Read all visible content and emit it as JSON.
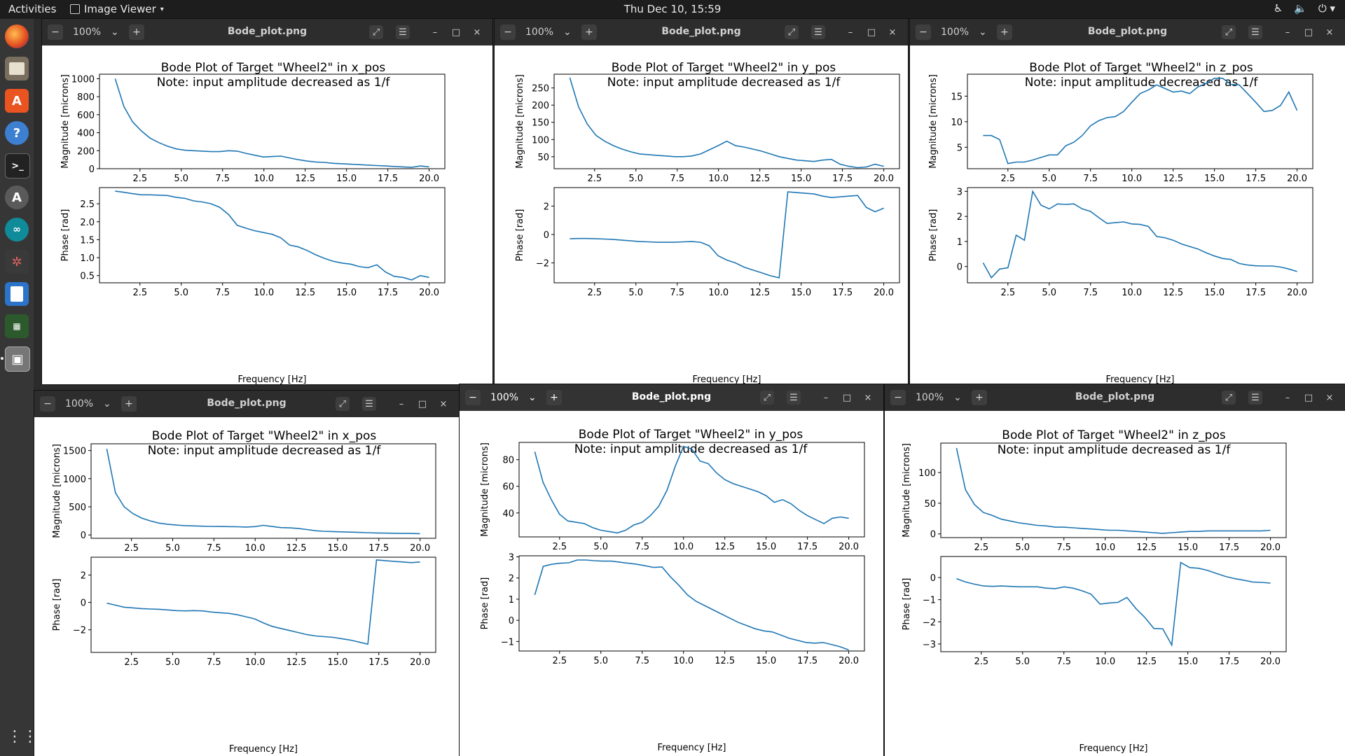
{
  "topbar": {
    "activities": "Activities",
    "app_name": "Image Viewer",
    "clock": "Thu Dec 10, 15:59",
    "tray_icons": [
      "accessibility-icon",
      "volume-icon",
      "power-icon"
    ]
  },
  "dock": {
    "items": [
      "firefox-icon",
      "files-icon",
      "software-store-icon",
      "help-icon",
      "terminal-icon",
      "updater-icon",
      "arduino-icon",
      "ros-icon",
      "text-editor-icon",
      "system-monitor-icon",
      "image-viewer-icon"
    ]
  },
  "windows": [
    {
      "zoom": "100%",
      "filename": "Bode_plot.png",
      "title_line1": "Bode Plot of Target \"Wheel2\" in x_pos",
      "title_line2": "Note: input amplitude decreased as 1/f",
      "mag_ylabel": "Magnitude [microns]",
      "phase_ylabel": "Phase [rad]",
      "xlabel": "Frequency [Hz]",
      "mag_ylim": [
        0,
        1050
      ],
      "mag_yticks": [
        0,
        200,
        400,
        600,
        800,
        1000
      ],
      "mag_yticks_text": [
        "0",
        "200",
        "400",
        "600",
        "800",
        "1000"
      ],
      "phase_ylim": [
        0.3,
        2.95
      ],
      "phase_yticks": [
        0.5,
        1.0,
        1.5,
        2.0,
        2.5
      ],
      "phase_yticks_text": [
        "0.5",
        "1.0",
        "1.5",
        "2.0",
        "2.5"
      ],
      "x_ticks_text": [
        "2.5",
        "5.0",
        "7.5",
        "10.0",
        "12.5",
        "15.0",
        "17.5",
        "20.0"
      ],
      "mag_y": [
        1000,
        690,
        520,
        420,
        340,
        290,
        250,
        220,
        205,
        200,
        195,
        190,
        190,
        200,
        195,
        170,
        150,
        130,
        135,
        140,
        120,
        100,
        85,
        75,
        70,
        60,
        55,
        50,
        45,
        40,
        35,
        30,
        25,
        20,
        15,
        30,
        20
      ],
      "phase_y": [
        2.85,
        2.82,
        2.78,
        2.75,
        2.75,
        2.74,
        2.73,
        2.68,
        2.65,
        2.58,
        2.55,
        2.5,
        2.4,
        2.2,
        1.9,
        1.82,
        1.75,
        1.7,
        1.65,
        1.55,
        1.35,
        1.3,
        1.2,
        1.08,
        0.98,
        0.9,
        0.85,
        0.82,
        0.75,
        0.72,
        0.8,
        0.6,
        0.48,
        0.45,
        0.38,
        0.5,
        0.45
      ]
    },
    {
      "zoom": "100%",
      "filename": "Bode_plot.png",
      "title_line1": "Bode Plot of Target \"Wheel2\" in y_pos",
      "title_line2": "Note: input amplitude decreased as 1/f",
      "mag_ylabel": "Magnitude [microns]",
      "phase_ylabel": "Phase [rad]",
      "xlabel": "Frequency [Hz]",
      "mag_ylim": [
        15,
        290
      ],
      "mag_yticks": [
        50,
        100,
        150,
        200,
        250
      ],
      "mag_yticks_text": [
        "50",
        "100",
        "150",
        "200",
        "250"
      ],
      "phase_ylim": [
        -3.4,
        3.3
      ],
      "phase_yticks": [
        -2,
        0,
        2
      ],
      "phase_yticks_text": [
        "−2",
        "0",
        "2"
      ],
      "x_ticks_text": [
        "2.5",
        "5.0",
        "7.5",
        "10.0",
        "12.5",
        "15.0",
        "17.5",
        "20.0"
      ],
      "mag_y": [
        280,
        195,
        145,
        112,
        95,
        82,
        72,
        64,
        58,
        56,
        54,
        52,
        50,
        50,
        52,
        58,
        70,
        82,
        95,
        82,
        78,
        72,
        66,
        58,
        50,
        45,
        40,
        38,
        36,
        40,
        42,
        28,
        22,
        18,
        20,
        28,
        22
      ],
      "phase_y": [
        -0.3,
        -0.28,
        -0.28,
        -0.3,
        -0.32,
        -0.35,
        -0.4,
        -0.45,
        -0.5,
        -0.52,
        -0.55,
        -0.55,
        -0.55,
        -0.52,
        -0.5,
        -0.55,
        -0.8,
        -1.5,
        -1.8,
        -2.0,
        -2.3,
        -2.5,
        -2.7,
        -2.9,
        -3.05,
        3.0,
        2.95,
        2.9,
        2.85,
        2.7,
        2.6,
        2.65,
        2.7,
        2.75,
        1.9,
        1.6,
        1.85
      ]
    },
    {
      "zoom": "100%",
      "filename": "Bode_plot.png",
      "title_line1": "Bode Plot of Target \"Wheel2\" in z_pos",
      "title_line2": "Note: input amplitude decreased as 1/f",
      "mag_ylabel": "Magnitude [microns]",
      "phase_ylabel": "Phase [rad]",
      "xlabel": "Frequency [Hz]",
      "mag_ylim": [
        0.8,
        19.3
      ],
      "mag_yticks": [
        5,
        10,
        15
      ],
      "mag_yticks_text": [
        "5",
        "10",
        "15"
      ],
      "phase_ylim": [
        -0.65,
        3.15
      ],
      "phase_yticks": [
        0,
        1,
        2,
        3
      ],
      "phase_yticks_text": [
        "0",
        "1",
        "2",
        "3"
      ],
      "x_ticks_text": [
        "2.5",
        "5.0",
        "7.5",
        "10.0",
        "12.5",
        "15.0",
        "17.5",
        "20.0"
      ],
      "mag_y": [
        7.3,
        7.3,
        6.5,
        1.8,
        2.1,
        2.1,
        2.5,
        3.0,
        3.5,
        3.5,
        5.3,
        6.0,
        7.3,
        9.2,
        10.2,
        10.8,
        11.0,
        12.0,
        13.8,
        15.5,
        16.2,
        17.2,
        16.5,
        15.8,
        16.0,
        15.5,
        16.8,
        17.5,
        18.5,
        18.5,
        17.3,
        17.2,
        15.5,
        13.8,
        12.0,
        12.2,
        13.2,
        15.8,
        12.2
      ],
      "phase_y": [
        0.15,
        -0.45,
        -0.1,
        -0.05,
        1.25,
        1.05,
        3.0,
        2.45,
        2.3,
        2.5,
        2.48,
        2.5,
        2.3,
        2.2,
        1.95,
        1.72,
        1.75,
        1.78,
        1.7,
        1.68,
        1.6,
        1.2,
        1.15,
        1.05,
        0.9,
        0.8,
        0.7,
        0.55,
        0.42,
        0.32,
        0.28,
        0.12,
        0.06,
        0.03,
        0.02,
        0.02,
        -0.02,
        -0.1,
        -0.2
      ]
    },
    {
      "zoom": "100%",
      "filename": "Bode_plot.png",
      "title_line1": "Bode Plot of Target \"Wheel2\" in x_pos",
      "title_line2": "Note: input amplitude decreased as 1/f",
      "mag_ylabel": "Magnitude [microns]",
      "phase_ylabel": "Phase [rad]",
      "xlabel": "Frequency [Hz]",
      "mag_ylim": [
        -60,
        1620
      ],
      "mag_yticks": [
        0,
        500,
        1000,
        1500
      ],
      "mag_yticks_text": [
        "0",
        "500",
        "1000",
        "1500"
      ],
      "phase_ylim": [
        -3.65,
        3.3
      ],
      "phase_yticks": [
        -2,
        0,
        2
      ],
      "phase_yticks_text": [
        "−2",
        "0",
        "2"
      ],
      "x_ticks_text": [
        "2.5",
        "5.0",
        "7.5",
        "10.0",
        "12.5",
        "15.0",
        "17.5",
        "20.0"
      ],
      "mag_y": [
        1530,
        750,
        500,
        380,
        300,
        250,
        210,
        190,
        175,
        165,
        160,
        155,
        152,
        150,
        148,
        145,
        140,
        148,
        170,
        150,
        130,
        125,
        115,
        95,
        75,
        65,
        60,
        55,
        50,
        45,
        40,
        35,
        32,
        30,
        28,
        26,
        22
      ],
      "phase_y": [
        -0.05,
        -0.2,
        -0.35,
        -0.4,
        -0.45,
        -0.48,
        -0.5,
        -0.55,
        -0.6,
        -0.62,
        -0.6,
        -0.62,
        -0.7,
        -0.75,
        -0.8,
        -0.9,
        -1.05,
        -1.2,
        -1.5,
        -1.75,
        -1.9,
        -2.05,
        -2.2,
        -2.35,
        -2.45,
        -2.5,
        -2.55,
        -2.65,
        -2.75,
        -2.9,
        -3.05,
        3.1,
        3.05,
        3.0,
        2.95,
        2.9,
        2.95
      ]
    },
    {
      "zoom": "100%",
      "filename": "Bode_plot.png",
      "title_line1": "Bode Plot of Target \"Wheel2\" in y_pos",
      "title_line2": "Note: input amplitude decreased as 1/f",
      "mag_ylabel": "Magnitude [microns]",
      "phase_ylabel": "Phase [rad]",
      "xlabel": "Frequency [Hz]",
      "mag_ylim": [
        22,
        93
      ],
      "mag_yticks": [
        40,
        60,
        80
      ],
      "mag_yticks_text": [
        "40",
        "60",
        "80"
      ],
      "phase_ylim": [
        -1.45,
        3.05
      ],
      "phase_yticks": [
        -1,
        0,
        1,
        2,
        3
      ],
      "phase_yticks_text": [
        "−1",
        "0",
        "1",
        "2",
        "3"
      ],
      "x_ticks_text": [
        "2.5",
        "5.0",
        "7.5",
        "10.0",
        "12.5",
        "15.0",
        "17.5",
        "20.0"
      ],
      "mag_y": [
        86,
        63,
        50,
        39,
        34,
        33,
        32,
        29,
        27,
        26,
        25,
        27,
        31,
        33,
        38,
        45,
        57,
        75,
        90,
        88,
        79,
        77,
        70,
        65,
        62,
        60,
        58,
        56,
        53,
        48,
        50,
        47,
        42,
        38,
        35,
        32,
        36,
        37,
        36
      ],
      "phase_y": [
        1.2,
        2.55,
        2.65,
        2.7,
        2.72,
        2.85,
        2.85,
        2.82,
        2.8,
        2.8,
        2.75,
        2.7,
        2.65,
        2.58,
        2.5,
        2.52,
        2.05,
        1.65,
        1.2,
        0.9,
        0.7,
        0.5,
        0.3,
        0.1,
        -0.1,
        -0.25,
        -0.4,
        -0.5,
        -0.55,
        -0.7,
        -0.85,
        -0.95,
        -1.05,
        -1.08,
        -1.05,
        -1.15,
        -1.25,
        -1.4
      ],
      "active": true
    },
    {
      "zoom": "100%",
      "filename": "Bode_plot.png",
      "title_line1": "Bode Plot of Target \"Wheel2\" in z_pos",
      "title_line2": "Note: input amplitude decreased as 1/f",
      "mag_ylabel": "Magnitude [microns]",
      "phase_ylabel": "Phase [rad]",
      "xlabel": "Frequency [Hz]",
      "mag_ylim": [
        -6,
        148
      ],
      "mag_yticks": [
        0,
        50,
        100
      ],
      "mag_yticks_text": [
        "0",
        "50",
        "100"
      ],
      "phase_ylim": [
        -3.35,
        0.95
      ],
      "phase_yticks": [
        -3,
        -2,
        -1,
        0
      ],
      "phase_yticks_text": [
        "−3",
        "−2",
        "−1",
        "0"
      ],
      "x_ticks_text": [
        "2.5",
        "5.0",
        "7.5",
        "10.0",
        "12.5",
        "15.0",
        "17.5",
        "20.0"
      ],
      "mag_y": [
        140,
        72,
        48,
        35,
        30,
        24,
        21,
        18,
        16,
        14,
        13,
        11,
        11,
        10,
        9,
        8,
        7,
        6,
        6,
        5,
        4,
        3,
        2,
        1,
        2,
        3,
        4,
        4,
        5,
        5,
        5,
        5,
        5,
        5,
        5,
        6
      ],
      "phase_y": [
        -0.05,
        -0.2,
        -0.3,
        -0.38,
        -0.4,
        -0.38,
        -0.4,
        -0.42,
        -0.42,
        -0.42,
        -0.48,
        -0.5,
        -0.42,
        -0.48,
        -0.6,
        -0.75,
        -1.2,
        -1.15,
        -1.12,
        -0.9,
        -1.4,
        -1.8,
        -2.3,
        -2.32,
        -3.05,
        0.68,
        0.45,
        0.42,
        0.32,
        0.18,
        0.05,
        -0.05,
        -0.12,
        -0.2,
        -0.22,
        -0.25
      ],
      "active": false
    }
  ]
}
